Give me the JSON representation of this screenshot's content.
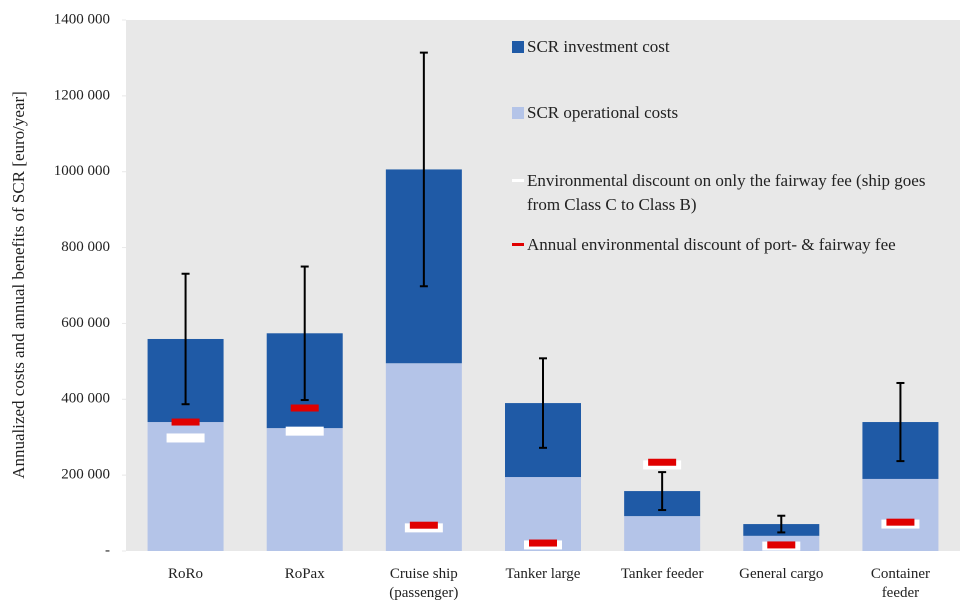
{
  "chart_data": {
    "type": "bar",
    "y_label": "Annualized costs and annual benefits of SCR [euro/year]",
    "categories": [
      "RoRo",
      "RoPax",
      "Cruise ship (passenger)",
      "Tanker large",
      "Tanker feeder",
      "General cargo",
      "Container feeder"
    ],
    "series": [
      {
        "name": "SCR investment cost",
        "color": "#1f5aa6",
        "values": [
          219000,
          250000,
          511000,
          195000,
          66000,
          31000,
          150000
        ],
        "errors": [
          172000,
          176000,
          308000,
          118000,
          50000,
          22000,
          103000
        ]
      },
      {
        "name": "SCR operational costs",
        "color": "#b4c4e8",
        "values": [
          340000,
          324000,
          495000,
          195000,
          92000,
          40000,
          190000
        ]
      },
      {
        "name": "Environmental discount on only the fairway fee (ship goes from Class C to Class B)",
        "color": "#ffffff",
        "marker": true,
        "values": [
          298000,
          316000,
          61000,
          16000,
          227000,
          13000,
          71000
        ]
      },
      {
        "name": "Annual environmental discount of port- & fairway fee",
        "color": "#e00000",
        "marker": true,
        "values": [
          340000,
          377000,
          68000,
          21000,
          234000,
          16000,
          76000
        ]
      }
    ],
    "ylim": [
      0,
      1400000
    ],
    "yticks": [
      {
        "value": 0,
        "label": "-"
      },
      {
        "value": 200000,
        "label": "200 000"
      },
      {
        "value": 400000,
        "label": "400 000"
      },
      {
        "value": 600000,
        "label": "600 000"
      },
      {
        "value": 800000,
        "label": "800 000"
      },
      {
        "value": 1000000,
        "label": "1000 000"
      },
      {
        "value": 1200000,
        "label": "1200 000"
      },
      {
        "value": 1400000,
        "label": "1400 000"
      }
    ]
  }
}
